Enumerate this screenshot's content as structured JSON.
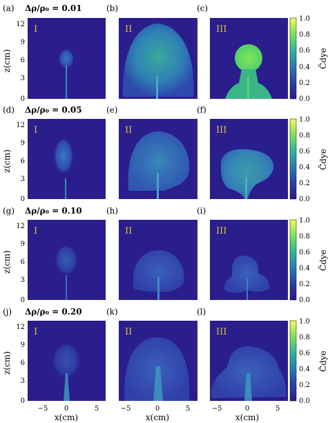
{
  "figure": {
    "panel_letters": [
      "(a)",
      "(b)",
      "(c)",
      "(d)",
      "(e)",
      "(f)",
      "(g)",
      "(h)",
      "(i)",
      "(j)",
      "(k)",
      "(l)"
    ],
    "column_labels": [
      "I",
      "II",
      "III"
    ],
    "row_ratios": [
      "Δρ/ρ₀ = 0.01",
      "Δρ/ρ₀ = 0.05",
      "Δρ/ρ₀ = 0.10",
      "Δρ/ρ₀ = 0.20"
    ],
    "y_axis_label": "z(cm)",
    "x_axis_label": "x(cm)",
    "y_ticks": [
      "12",
      "9",
      "6",
      "3",
      "0"
    ],
    "x_ticks": [
      "−5",
      "0",
      "5"
    ],
    "colorbar_label": "C̃dye",
    "colorbar_ticks": [
      "1.0",
      "0.8",
      "0.6",
      "0.4",
      "0.2",
      "0.0"
    ],
    "colors": {
      "background": "#2a1e8c",
      "low": "#2f2a9a",
      "mid": "#2b6fb0",
      "green": "#3fd37a",
      "high": "#f4f25a"
    }
  }
}
